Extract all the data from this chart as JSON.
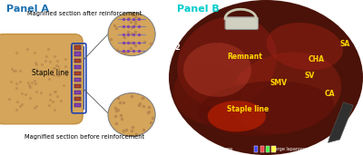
{
  "panel_a_label": "Panel A",
  "panel_b_label": "Panel B",
  "label_after": "Magnified section after reinforcement",
  "label_staple": "Staple line",
  "label_before": "Magnified section before reinforcement",
  "label_remnant": "Remnant",
  "label_smv": "SMV",
  "label_staple_b": "Staple line",
  "label_cha": "CHA",
  "label_sv": "SV",
  "label_ca": "CA",
  "label_sa": "SA",
  "figsize": [
    4.0,
    1.71
  ],
  "dpi": 100
}
